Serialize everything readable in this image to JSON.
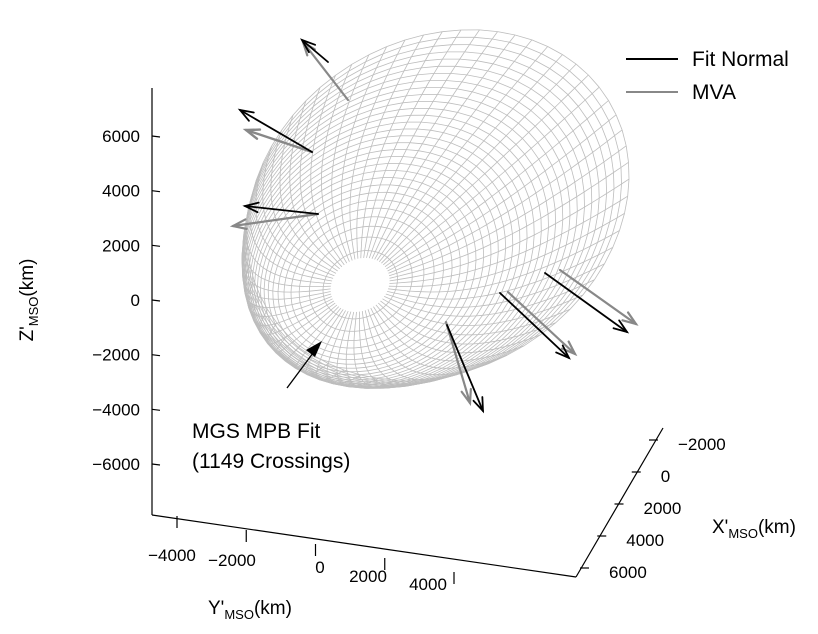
{
  "chart_data": {
    "type": "3d-surface-with-vectors",
    "axes": {
      "x": {
        "label": "X'",
        "subscript": "MSO",
        "unit": "(km)",
        "ticks": [
          -2000,
          0,
          2000,
          4000,
          6000
        ]
      },
      "y": {
        "label": "Y'",
        "subscript": "MSO",
        "unit": "(km)",
        "ticks": [
          -4000,
          -2000,
          0,
          2000,
          4000
        ]
      },
      "z": {
        "label": "Z'",
        "subscript": "MSO",
        "unit": "(km)",
        "ticks": [
          6000,
          4000,
          2000,
          0,
          -2000,
          -4000,
          -6000
        ]
      }
    },
    "legend": {
      "position": "top-right",
      "entries": [
        {
          "name": "Fit Normal",
          "color": "#000000"
        },
        {
          "name": "MVA",
          "color": "#888888"
        }
      ]
    },
    "annotation": {
      "lines": [
        "MGS MPB Fit",
        "(1149 Crossings)"
      ]
    },
    "surface": {
      "name": "MGS MPB Fit",
      "color": "#bdbdbd"
    },
    "series_colors": {
      "fit_normal": "#000000",
      "mva": "#888888"
    }
  }
}
